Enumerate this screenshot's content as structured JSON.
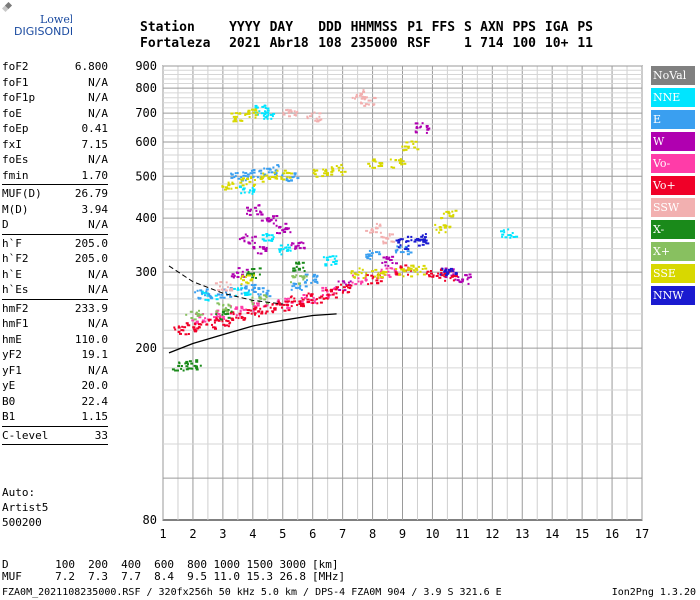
{
  "logo": {
    "line1": "Lowell",
    "line2": "DIGISONDE"
  },
  "header": {
    "labels": [
      "Station",
      "YYYY",
      "DAY",
      "DDD",
      "HHMMSS",
      "P1",
      "FFS",
      "S",
      "AXN",
      "PPS",
      "IGA",
      "PS"
    ],
    "values": [
      "Fortaleza",
      "2021",
      "Abr18",
      "108",
      "235000",
      "RSF",
      "",
      "1",
      "714",
      "100",
      "10+",
      "11"
    ]
  },
  "params_groups": [
    [
      {
        "k": "foF2",
        "v": "6.800"
      },
      {
        "k": "foF1",
        "v": "N/A"
      },
      {
        "k": "foF1p",
        "v": "N/A"
      },
      {
        "k": "foE",
        "v": "N/A"
      },
      {
        "k": "foEp",
        "v": "0.41"
      },
      {
        "k": "fxI",
        "v": "7.15"
      },
      {
        "k": "foEs",
        "v": "N/A"
      },
      {
        "k": "fmin",
        "v": "1.70"
      }
    ],
    [
      {
        "k": "MUF(D)",
        "v": "26.79"
      },
      {
        "k": "M(D)",
        "v": "3.94"
      },
      {
        "k": "D",
        "v": "N/A"
      }
    ],
    [
      {
        "k": "h`F",
        "v": "205.0"
      },
      {
        "k": "h`F2",
        "v": "205.0"
      },
      {
        "k": "h`E",
        "v": "N/A"
      },
      {
        "k": "h`Es",
        "v": "N/A"
      }
    ],
    [
      {
        "k": "hmF2",
        "v": "233.9"
      },
      {
        "k": "hmF1",
        "v": "N/A"
      },
      {
        "k": "hmE",
        "v": "110.0"
      },
      {
        "k": "yF2",
        "v": "19.1"
      },
      {
        "k": "yF1",
        "v": "N/A"
      },
      {
        "k": "yE",
        "v": "20.0"
      },
      {
        "k": "B0",
        "v": "22.4"
      },
      {
        "k": "B1",
        "v": "1.15"
      }
    ],
    [
      {
        "k": "C-level",
        "v": "33"
      }
    ]
  ],
  "auto": {
    "line1": "Auto:",
    "line2": "Artist5",
    "line3": "500200"
  },
  "legend": [
    {
      "label": "NoVal",
      "color": "#808080"
    },
    {
      "label": "NNE",
      "color": "#00e5ff"
    },
    {
      "label": "E",
      "color": "#3a9ff0"
    },
    {
      "label": "W",
      "color": "#b000b0"
    },
    {
      "label": "Vo-",
      "color": "#ff3ca8"
    },
    {
      "label": "Vo+",
      "color": "#f00028"
    },
    {
      "label": "SSW",
      "color": "#f2b0b0"
    },
    {
      "label": "X-",
      "color": "#1a8a1a"
    },
    {
      "label": "X+",
      "color": "#88c060"
    },
    {
      "label": "SSE",
      "color": "#d8d800"
    },
    {
      "label": "NNW",
      "color": "#1a1ad0"
    }
  ],
  "chart_data": {
    "type": "scatter",
    "x_ticks": [
      "1",
      "2",
      "3",
      "4",
      "5",
      "6",
      "7",
      "8",
      "9",
      "10",
      "11",
      "12",
      "13",
      "14",
      "15",
      "16",
      "17"
    ],
    "y_ticks": [
      "80",
      "200",
      "300",
      "400",
      "500",
      "600",
      "700",
      "800",
      "900"
    ],
    "xlim": [
      1,
      17
    ],
    "ylim": [
      80,
      900
    ],
    "y_scale": "log",
    "grid": true,
    "series": [
      {
        "name": "NNE",
        "color": "#00e5ff",
        "points": [
          [
            4.2,
            720
          ],
          [
            4.4,
            690
          ],
          [
            3.8,
            470
          ],
          [
            4.5,
            360
          ],
          [
            5.0,
            340
          ],
          [
            6.5,
            320
          ],
          [
            12.5,
            370
          ],
          [
            3.6,
            270
          ],
          [
            2.5,
            265
          ]
        ]
      },
      {
        "name": "E",
        "color": "#3a9ff0",
        "points": [
          [
            3.5,
            500
          ],
          [
            4.0,
            510
          ],
          [
            4.6,
            520
          ],
          [
            5.2,
            500
          ],
          [
            2.3,
            268
          ],
          [
            3.0,
            270
          ],
          [
            3.8,
            275
          ],
          [
            4.3,
            270
          ],
          [
            5.5,
            280
          ],
          [
            6.0,
            290
          ],
          [
            8.0,
            330
          ],
          [
            9.0,
            340
          ]
        ]
      },
      {
        "name": "W",
        "color": "#b000b0",
        "points": [
          [
            4.0,
            420
          ],
          [
            4.5,
            400
          ],
          [
            5.0,
            380
          ],
          [
            4.2,
            340
          ],
          [
            3.8,
            360
          ],
          [
            5.5,
            350
          ],
          [
            10.5,
            300
          ],
          [
            11.0,
            290
          ],
          [
            7.0,
            280
          ],
          [
            9.6,
            650
          ],
          [
            8.5,
            320
          ],
          [
            3.5,
            300
          ]
        ]
      },
      {
        "name": "Vo-",
        "color": "#ff3ca8",
        "points": [
          [
            2.2,
            235
          ],
          [
            2.8,
            240
          ],
          [
            3.5,
            245
          ],
          [
            4.2,
            250
          ],
          [
            5.0,
            255
          ],
          [
            5.8,
            262
          ],
          [
            6.5,
            270
          ],
          [
            7.5,
            290
          ],
          [
            8.5,
            300
          ]
        ]
      },
      {
        "name": "Vo+",
        "color": "#f00028",
        "points": [
          [
            1.6,
            222
          ],
          [
            2.0,
            225
          ],
          [
            2.5,
            228
          ],
          [
            3.0,
            232
          ],
          [
            3.5,
            238
          ],
          [
            4.0,
            243
          ],
          [
            4.5,
            248
          ],
          [
            5.0,
            252
          ],
          [
            5.5,
            258
          ],
          [
            6.0,
            262
          ],
          [
            6.5,
            268
          ],
          [
            7.0,
            275
          ],
          [
            8.0,
            290
          ],
          [
            9.0,
            305
          ],
          [
            10.0,
            300
          ],
          [
            10.5,
            295
          ]
        ]
      },
      {
        "name": "SSW",
        "color": "#f2b0b0",
        "points": [
          [
            7.5,
            780
          ],
          [
            7.8,
            750
          ],
          [
            5.2,
            710
          ],
          [
            6.0,
            690
          ],
          [
            8.0,
            380
          ],
          [
            8.5,
            360
          ],
          [
            3.0,
            280
          ]
        ]
      },
      {
        "name": "X-",
        "color": "#1a8a1a",
        "points": [
          [
            1.5,
            183
          ],
          [
            2.0,
            184
          ],
          [
            3.0,
            240
          ],
          [
            4.0,
            300
          ],
          [
            5.5,
            310
          ]
        ]
      },
      {
        "name": "X+",
        "color": "#88c060",
        "points": [
          [
            2.0,
            240
          ],
          [
            3.0,
            250
          ],
          [
            4.2,
            260
          ],
          [
            5.5,
            290
          ]
        ]
      },
      {
        "name": "SSE",
        "color": "#d8d800",
        "points": [
          [
            3.5,
            690
          ],
          [
            4.0,
            700
          ],
          [
            3.2,
            480
          ],
          [
            3.8,
            490
          ],
          [
            4.5,
            500
          ],
          [
            5.0,
            505
          ],
          [
            6.2,
            510
          ],
          [
            6.8,
            520
          ],
          [
            8.0,
            540
          ],
          [
            8.8,
            540
          ],
          [
            9.2,
            590
          ],
          [
            7.5,
            300
          ],
          [
            8.2,
            300
          ],
          [
            9.0,
            300
          ],
          [
            9.5,
            305
          ],
          [
            10.3,
            380
          ],
          [
            10.5,
            410
          ],
          [
            3.8,
            290
          ]
        ]
      },
      {
        "name": "NNW",
        "color": "#1a1ad0",
        "points": [
          [
            9.0,
            350
          ],
          [
            9.4,
            355
          ],
          [
            9.6,
            360
          ],
          [
            10.5,
            300
          ]
        ]
      },
      {
        "name": "NoVal",
        "color": "#808080",
        "points": []
      }
    ]
  },
  "footer": {
    "row1_label": "D",
    "row1_values": [
      "100",
      "200",
      "400",
      "600",
      "800",
      "1000",
      "1500",
      "3000"
    ],
    "row1_unit": "[km]",
    "row2_label": "MUF",
    "row2_values": [
      "7.2",
      "7.3",
      "7.7",
      "8.4",
      "9.5",
      "11.0",
      "15.3",
      "26.8"
    ],
    "row2_unit": "[MHz]",
    "file_line": "FZA0M_2021108235000.RSF / 320fx256h 50 kHz 5.0 km / DPS-4 FZA0M 904 / 3.9 S 321.6 E",
    "version": "Ion2Png 1.3.20"
  }
}
